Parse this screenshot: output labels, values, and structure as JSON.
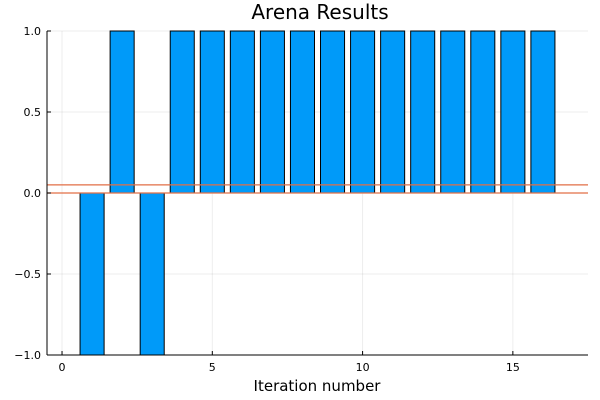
{
  "chart_data": {
    "type": "bar",
    "title": "Arena Results",
    "xlabel": "Iteration number",
    "ylabel": "",
    "xlim": [
      -0.5,
      17.5
    ],
    "ylim": [
      -1,
      1
    ],
    "xticks": [
      0,
      5,
      10,
      15
    ],
    "xtick_labels": [
      "0",
      "5",
      "10",
      "15"
    ],
    "yticks": [
      -1,
      -0.5,
      0,
      0.5,
      1
    ],
    "ytick_labels": [
      "−1.0",
      "−0.5",
      "0.0",
      "0.5",
      "1.0"
    ],
    "grid": true,
    "legend": "none",
    "bar_width": 0.8,
    "series": [
      {
        "x": [
          1,
          2,
          3,
          4,
          5,
          6,
          7,
          8,
          9,
          10,
          11,
          12,
          13,
          14,
          15,
          16
        ],
        "values": [
          -1,
          1,
          -1,
          1,
          1,
          1,
          1,
          1,
          1,
          1,
          1,
          1,
          1,
          1,
          1,
          1
        ],
        "color": "#009af9"
      }
    ],
    "hlines": [
      {
        "y": 0,
        "color": "#e26f46"
      },
      {
        "y": 0.05,
        "color": "#e26f46"
      }
    ]
  }
}
